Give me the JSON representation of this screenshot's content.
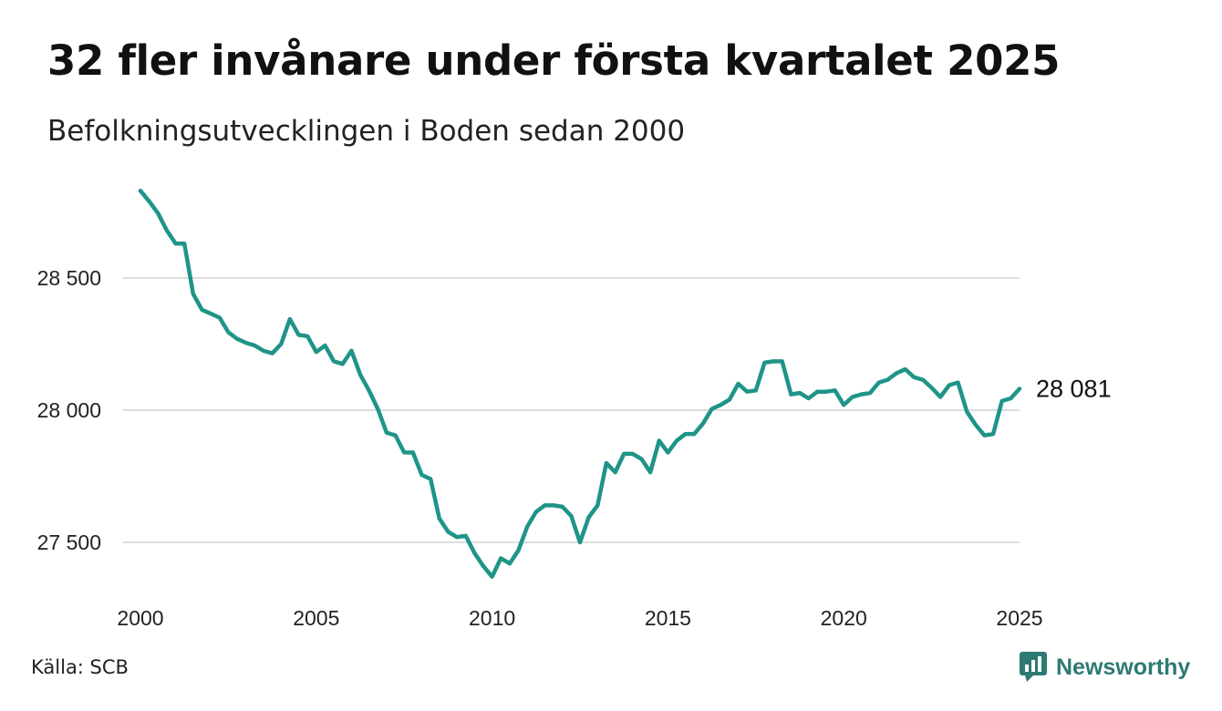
{
  "header": {
    "title": "32 fler invånare under första kvartalet 2025",
    "subtitle": "Befolkningsutvecklingen i Boden sedan 2000"
  },
  "footer": {
    "source": "Källa: SCB",
    "brand": "Newsworthy",
    "brand_icon": "newsworthy-logo-icon",
    "brand_color": "#2d7a72"
  },
  "chart_data": {
    "type": "line",
    "title": "32 fler invånare under första kvartalet 2025",
    "subtitle": "Befolkningsutvecklingen i Boden sedan 2000",
    "xlabel": "",
    "ylabel": "",
    "xlim": [
      2000,
      2025
    ],
    "ylim": [
      27350,
      28850
    ],
    "x_ticks": [
      2000,
      2005,
      2010,
      2015,
      2020,
      2025
    ],
    "x_tick_labels": [
      "2000",
      "2005",
      "2010",
      "2015",
      "2020",
      "2025"
    ],
    "y_ticks": [
      27500,
      28000,
      28500
    ],
    "y_tick_labels": [
      "27 500",
      "28 000",
      "28 500"
    ],
    "grid": "horizontal",
    "legend": "none",
    "line_color": "#1f9488",
    "end_label": "28 081",
    "series": [
      {
        "x": [
          2000.0,
          2000.25,
          2000.5,
          2000.75,
          2001.0,
          2001.25,
          2001.5,
          2001.75,
          2002.0,
          2002.25,
          2002.5,
          2002.75,
          2003.0,
          2003.25,
          2003.5,
          2003.75,
          2004.0,
          2004.25,
          2004.5,
          2004.75,
          2005.0,
          2005.25,
          2005.5,
          2005.75,
          2006.0,
          2006.25,
          2006.5,
          2006.75,
          2007.0,
          2007.25,
          2007.5,
          2007.75,
          2008.0,
          2008.25,
          2008.5,
          2008.75,
          2009.0,
          2009.25,
          2009.5,
          2009.75,
          2010.0,
          2010.25,
          2010.5,
          2010.75,
          2011.0,
          2011.25,
          2011.5,
          2011.75,
          2012.0,
          2012.25,
          2012.5,
          2012.75,
          2013.0,
          2013.25,
          2013.5,
          2013.75,
          2014.0,
          2014.25,
          2014.5,
          2014.75,
          2015.0,
          2015.25,
          2015.5,
          2015.75,
          2016.0,
          2016.25,
          2016.5,
          2016.75,
          2017.0,
          2017.25,
          2017.5,
          2017.75,
          2018.0,
          2018.25,
          2018.5,
          2018.75,
          2019.0,
          2019.25,
          2019.5,
          2019.75,
          2020.0,
          2020.25,
          2020.5,
          2020.75,
          2021.0,
          2021.25,
          2021.5,
          2021.75,
          2022.0,
          2022.25,
          2022.5,
          2022.75,
          2023.0,
          2023.25,
          2023.5,
          2023.75,
          2024.0,
          2024.25,
          2024.5,
          2024.75,
          2025.0
        ],
        "values": [
          28830,
          28790,
          28745,
          28680,
          28630,
          28630,
          28440,
          28380,
          28365,
          28350,
          28295,
          28270,
          28255,
          28245,
          28225,
          28215,
          28250,
          28345,
          28285,
          28280,
          28220,
          28245,
          28185,
          28175,
          28225,
          28135,
          28075,
          28005,
          27915,
          27905,
          27840,
          27840,
          27755,
          27740,
          27590,
          27540,
          27520,
          27525,
          27460,
          27410,
          27370,
          27440,
          27420,
          27470,
          27560,
          27615,
          27640,
          27640,
          27635,
          27600,
          27500,
          27595,
          27640,
          27800,
          27765,
          27835,
          27835,
          27815,
          27765,
          27885,
          27840,
          27885,
          27910,
          27910,
          27950,
          28005,
          28020,
          28040,
          28100,
          28070,
          28075,
          28180,
          28185,
          28185,
          28060,
          28065,
          28045,
          28070,
          28070,
          28075,
          28020,
          28050,
          28060,
          28065,
          28105,
          28115,
          28140,
          28155,
          28125,
          28115,
          28085,
          28050,
          28095,
          28105,
          27995,
          27945,
          27905,
          27910,
          28035,
          28045,
          28081
        ]
      }
    ]
  }
}
